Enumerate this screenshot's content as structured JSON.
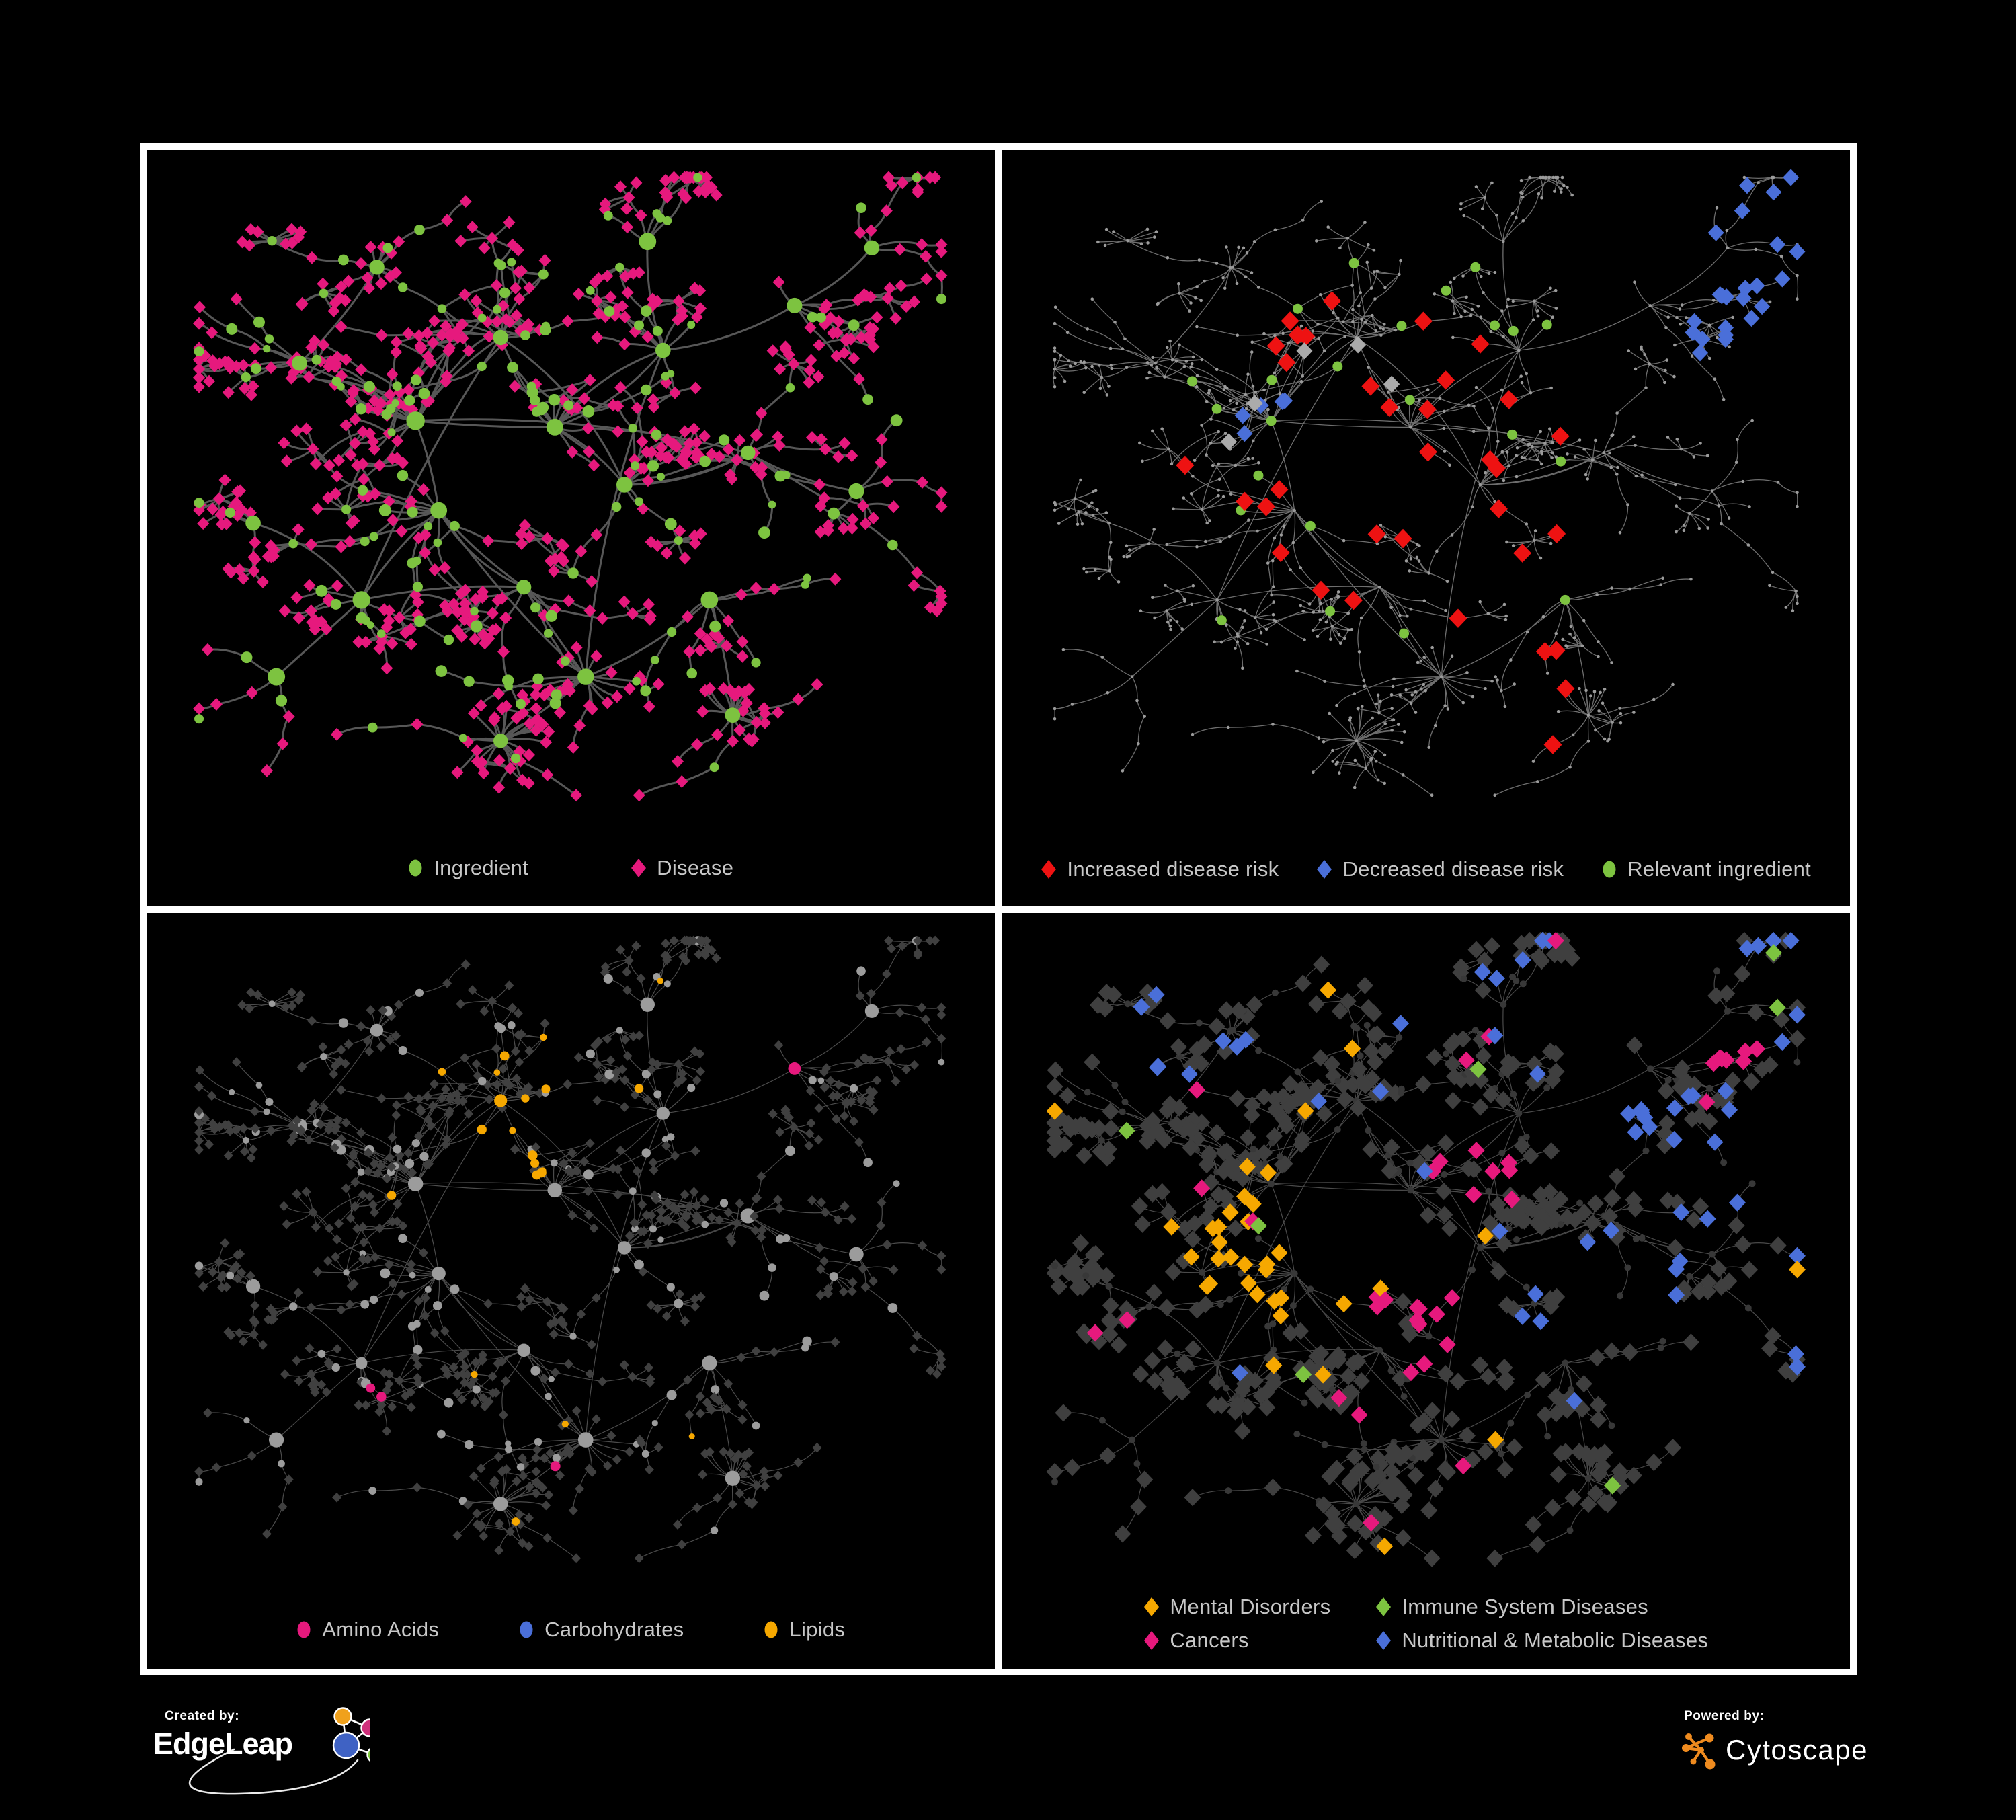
{
  "colors": {
    "background": "#000000",
    "panel_background": "#000000",
    "panel_border": "#ffffff",
    "legend_text": "#c7c7c7",
    "edge_bold": "#5c5c5c",
    "edge_thin": "#8a8a8a",
    "node_gray": "#9b9b9b",
    "node_dark": "#3e3e3e",
    "green": "#7dc340",
    "pink": "#e6197d",
    "red": "#ee1212",
    "blue": "#4a6fd9",
    "orange": "#f6a800",
    "gray_diamond": "#ababab",
    "edgeleap_orange": "#f0a11c",
    "edgeleap_pink": "#cf2f7b",
    "edgeleap_blue": "#3f62c4",
    "edgeleap_green": "#7ec83c",
    "cytoscape_orange": "#ef8b1f"
  },
  "panels": [
    {
      "name": "ingredient-disease-network",
      "legend": [
        {
          "label": "Ingredient",
          "shape": "circle",
          "color_key": "green"
        },
        {
          "label": "Disease",
          "shape": "diamond",
          "color_key": "pink"
        }
      ]
    },
    {
      "name": "disease-risk-network",
      "legend": [
        {
          "label": "Increased disease risk",
          "shape": "diamond",
          "color_key": "red"
        },
        {
          "label": "Decreased disease risk",
          "shape": "diamond",
          "color_key": "blue"
        },
        {
          "label": "Relevant ingredient",
          "shape": "circle",
          "color_key": "green"
        }
      ]
    },
    {
      "name": "nutrient-class-network",
      "legend": [
        {
          "label": "Amino Acids",
          "shape": "circle",
          "color_key": "pink"
        },
        {
          "label": "Carbohydrates",
          "shape": "circle",
          "color_key": "blue"
        },
        {
          "label": "Lipids",
          "shape": "circle",
          "color_key": "orange"
        }
      ]
    },
    {
      "name": "disease-class-network",
      "legend": [
        {
          "label": "Mental Disorders",
          "shape": "diamond",
          "color_key": "orange"
        },
        {
          "label": "Immune System Diseases",
          "shape": "diamond",
          "color_key": "green"
        },
        {
          "label": "Cancers",
          "shape": "diamond",
          "color_key": "pink"
        },
        {
          "label": "Nutritional & Metabolic Diseases",
          "shape": "diamond",
          "color_key": "blue"
        }
      ]
    }
  ],
  "footer": {
    "created_by": {
      "label": "Created by:",
      "brand": "EdgeLeap"
    },
    "powered_by": {
      "label": "Powered by:",
      "brand": "Cytoscape"
    }
  }
}
